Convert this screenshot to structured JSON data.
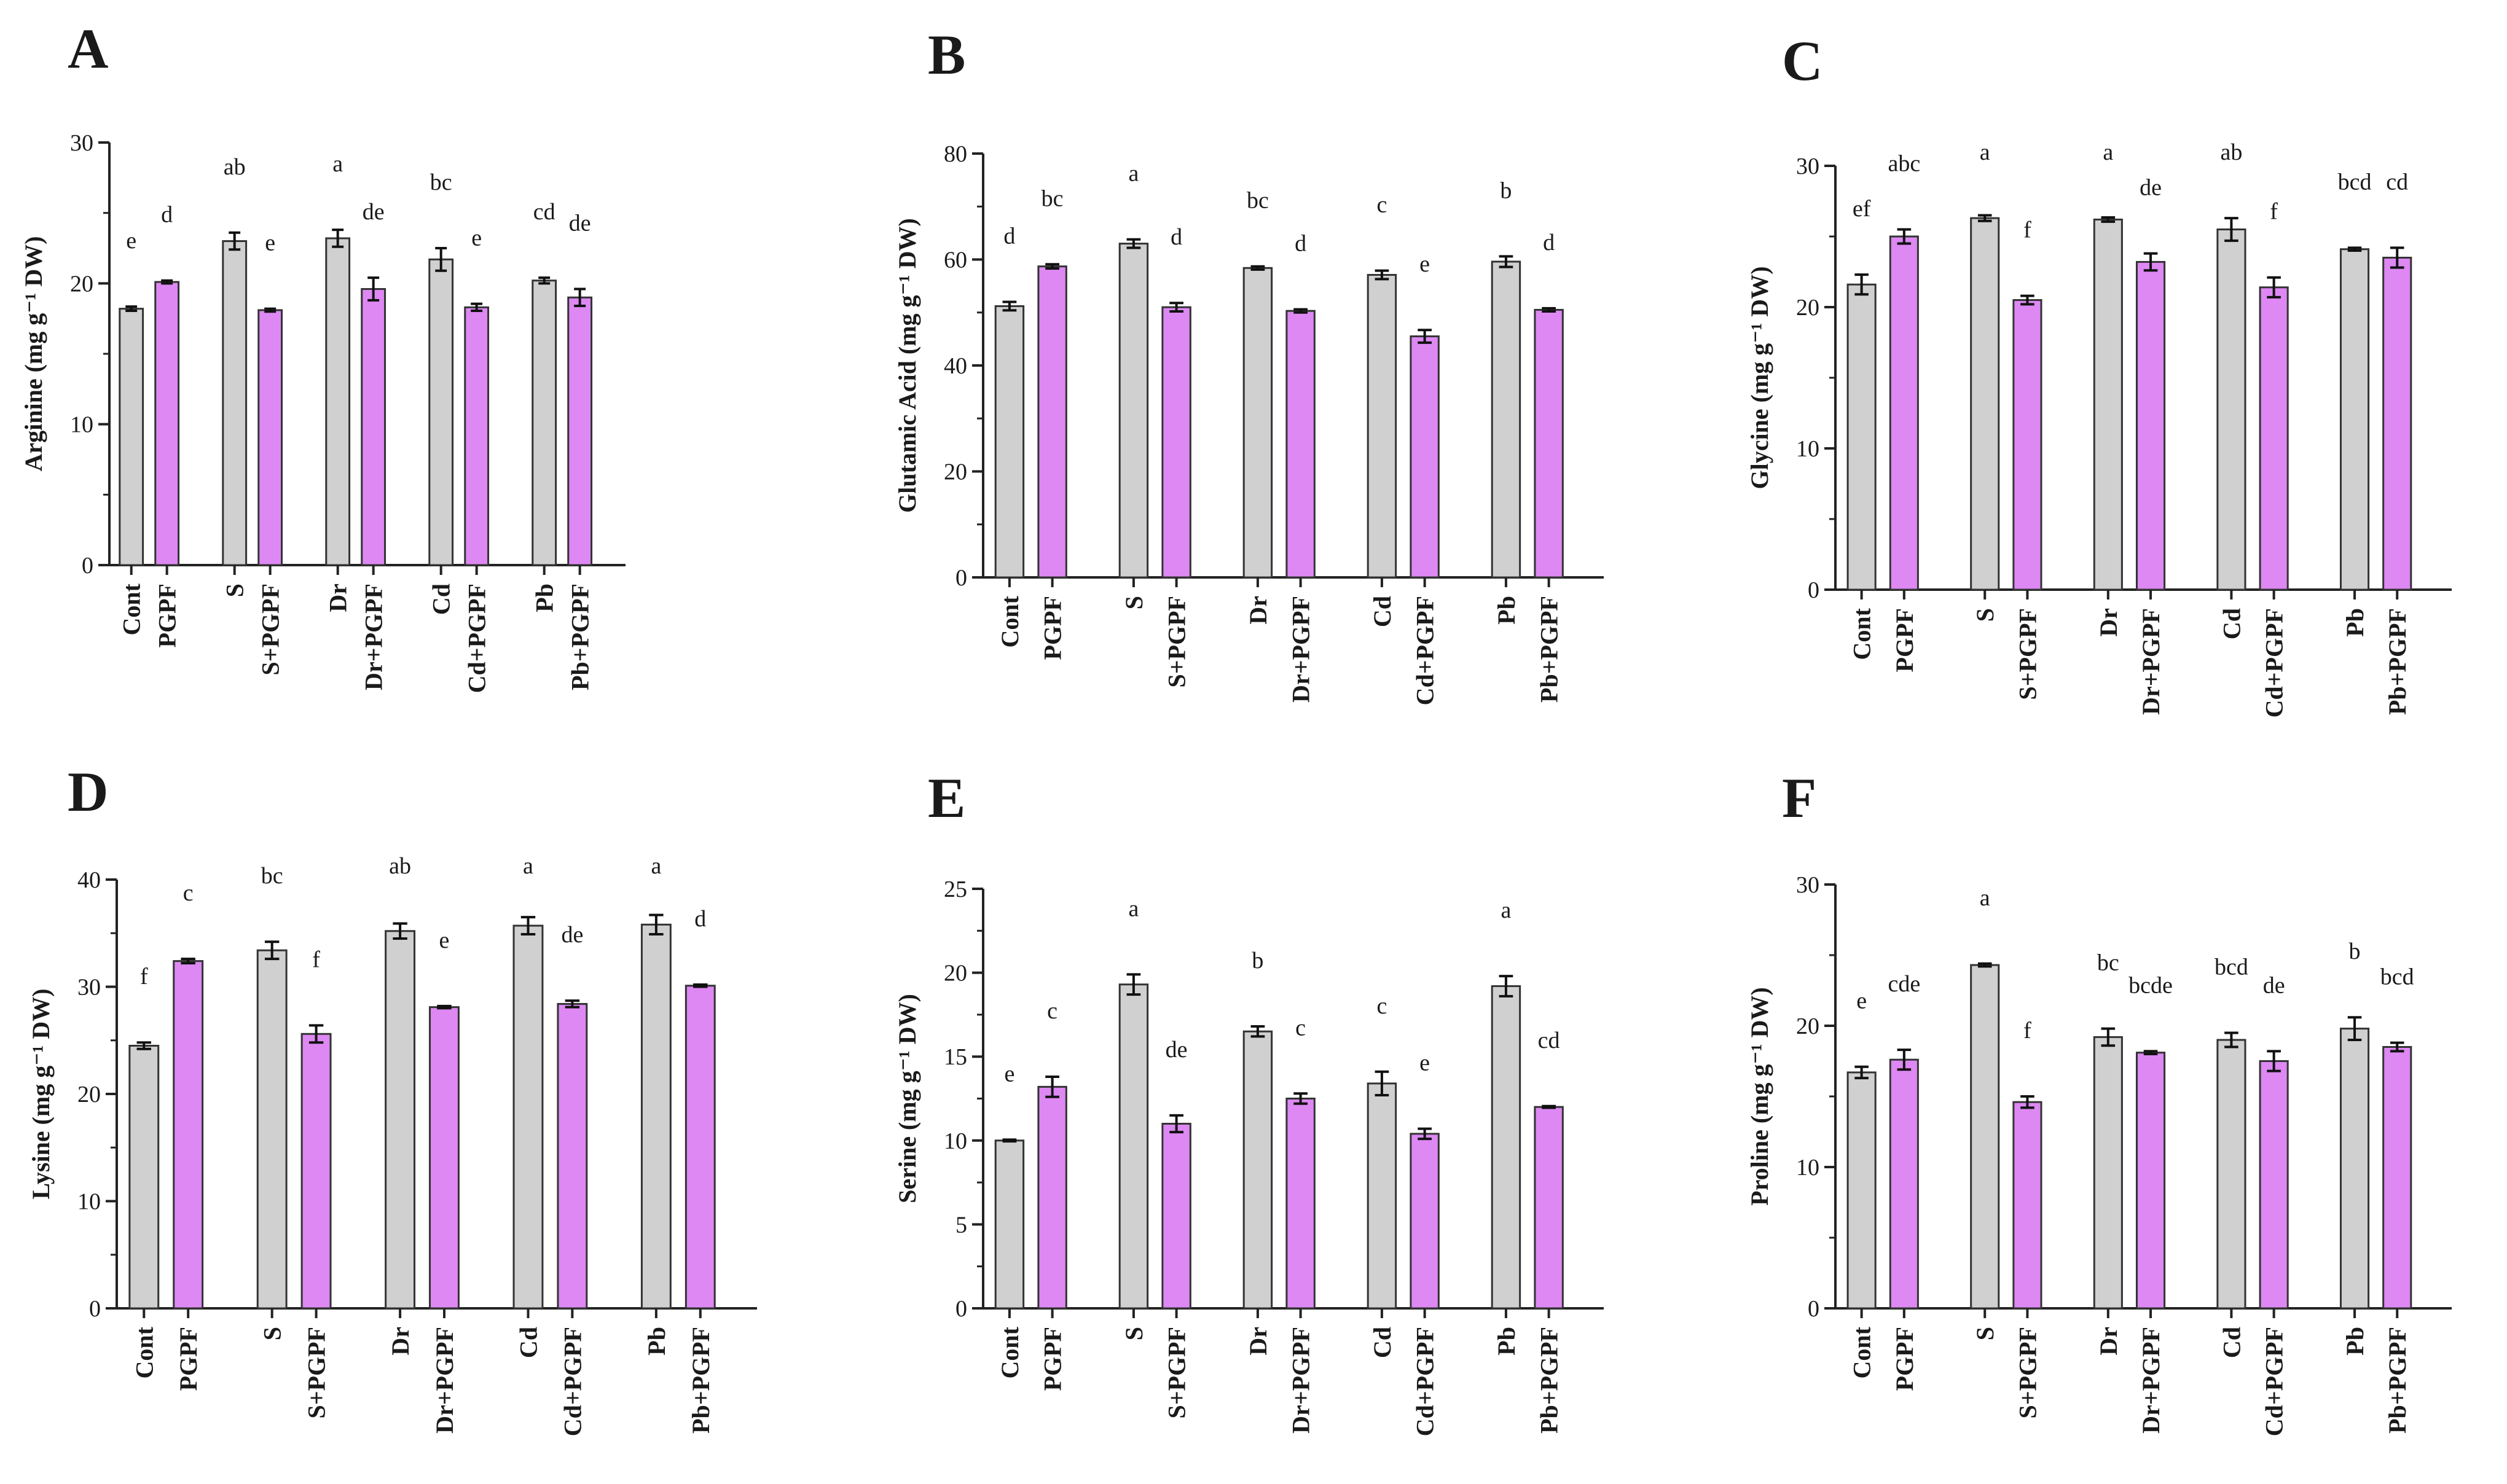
{
  "colors": {
    "control_bar": "#d0d0d0",
    "pgpf_bar": "#dd88f3",
    "axis": "#222222",
    "bar_edge": "#333333"
  },
  "chart_data": [
    {
      "type": "bar",
      "panel_label": "A",
      "ylabel": "Arginine (mg g⁻¹ DW)",
      "ylim": [
        0,
        30
      ],
      "yticks": [
        0,
        10,
        20,
        30
      ],
      "categories": [
        "Cont",
        "PGPF",
        "S",
        "S+PGPF",
        "Dr",
        "Dr+PGPF",
        "Cd",
        "Cd+PGPF",
        "Pb",
        "Pb+PGPF"
      ],
      "values": [
        18.2,
        20.1,
        23.0,
        18.1,
        23.2,
        19.6,
        21.7,
        18.3,
        20.2,
        19.0
      ],
      "errors": [
        0.15,
        0.1,
        0.6,
        0.1,
        0.6,
        0.8,
        0.8,
        0.25,
        0.2,
        0.6
      ],
      "letters": [
        "e",
        "d",
        "ab",
        "e",
        "a",
        "de",
        "bc",
        "e",
        "cd",
        "de"
      ]
    },
    {
      "type": "bar",
      "panel_label": "B",
      "ylabel": "Glutamic Acid (mg g⁻¹ DW)",
      "ylim": [
        0,
        80
      ],
      "yticks": [
        0,
        20,
        40,
        60,
        80
      ],
      "categories": [
        "Cont",
        "PGPF",
        "S",
        "S+PGPF",
        "Dr",
        "Dr+PGPF",
        "Cd",
        "Cd+PGPF",
        "Pb",
        "Pb+PGPF"
      ],
      "values": [
        51.2,
        58.7,
        63.0,
        51.0,
        58.4,
        50.3,
        57.1,
        45.5,
        59.6,
        50.5
      ],
      "errors": [
        0.8,
        0.4,
        0.8,
        0.8,
        0.3,
        0.3,
        0.8,
        1.2,
        1.0,
        0.3
      ],
      "letters": [
        "d",
        "bc",
        "a",
        "d",
        "bc",
        "d",
        "c",
        "e",
        "b",
        "d"
      ]
    },
    {
      "type": "bar",
      "panel_label": "C",
      "ylabel": "Glycine (mg g⁻¹ DW)",
      "ylim": [
        0,
        30
      ],
      "yticks": [
        0,
        10,
        20,
        30
      ],
      "categories": [
        "Cont",
        "PGPF",
        "S",
        "S+PGPF",
        "Dr",
        "Dr+PGPF",
        "Cd",
        "Cd+PGPF",
        "Pb",
        "Pb+PGPF"
      ],
      "values": [
        21.6,
        25.0,
        26.3,
        20.5,
        26.2,
        23.2,
        25.5,
        21.4,
        24.1,
        23.5
      ],
      "errors": [
        0.7,
        0.5,
        0.2,
        0.3,
        0.15,
        0.6,
        0.8,
        0.7,
        0.1,
        0.7
      ],
      "letters": [
        "ef",
        "abc",
        "a",
        "f",
        "a",
        "de",
        "ab",
        "f",
        "bcd",
        "cd"
      ]
    },
    {
      "type": "bar",
      "panel_label": "D",
      "ylabel": "Lysine (mg g⁻¹ DW)",
      "ylim": [
        0,
        40
      ],
      "yticks": [
        0,
        10,
        20,
        30,
        40
      ],
      "categories": [
        "Cont",
        "PGPF",
        "S",
        "S+PGPF",
        "Dr",
        "Dr+PGPF",
        "Cd",
        "Cd+PGPF",
        "Pb",
        "Pb+PGPF"
      ],
      "values": [
        24.5,
        32.4,
        33.4,
        25.6,
        35.2,
        28.1,
        35.7,
        28.4,
        35.8,
        30.1
      ],
      "errors": [
        0.3,
        0.2,
        0.8,
        0.8,
        0.7,
        0.1,
        0.8,
        0.3,
        0.9,
        0.1
      ],
      "letters": [
        "f",
        "c",
        "bc",
        "f",
        "ab",
        "e",
        "a",
        "de",
        "a",
        "d"
      ]
    },
    {
      "type": "bar",
      "panel_label": "E",
      "ylabel": "Serine (mg g⁻¹ DW)",
      "ylim": [
        0,
        25
      ],
      "yticks": [
        0,
        5,
        10,
        15,
        20,
        25
      ],
      "categories": [
        "Cont",
        "PGPF",
        "S",
        "S+PGPF",
        "Dr",
        "Dr+PGPF",
        "Cd",
        "Cd+PGPF",
        "Pb",
        "Pb+PGPF"
      ],
      "values": [
        10.0,
        13.2,
        19.3,
        11.0,
        16.5,
        12.5,
        13.4,
        10.4,
        19.2,
        12.0
      ],
      "errors": [
        0.05,
        0.6,
        0.6,
        0.5,
        0.3,
        0.3,
        0.7,
        0.3,
        0.6,
        0.05
      ],
      "letters": [
        "e",
        "c",
        "a",
        "de",
        "b",
        "c",
        "c",
        "e",
        "a",
        "cd"
      ]
    },
    {
      "type": "bar",
      "panel_label": "F",
      "ylabel": "Proline (mg g⁻¹ DW)",
      "ylim": [
        0,
        30
      ],
      "yticks": [
        0,
        10,
        20,
        30
      ],
      "categories": [
        "Cont",
        "PGPF",
        "S",
        "S+PGPF",
        "Dr",
        "Dr+PGPF",
        "Cd",
        "Cd+PGPF",
        "Pb",
        "Pb+PGPF"
      ],
      "values": [
        16.7,
        17.6,
        24.3,
        14.6,
        19.2,
        18.1,
        19.0,
        17.5,
        19.8,
        18.5
      ],
      "errors": [
        0.4,
        0.7,
        0.1,
        0.4,
        0.6,
        0.1,
        0.5,
        0.7,
        0.8,
        0.3
      ],
      "letters": [
        "e",
        "cde",
        "a",
        "f",
        "bc",
        "bcde",
        "bcd",
        "de",
        "b",
        "bcd"
      ]
    }
  ]
}
